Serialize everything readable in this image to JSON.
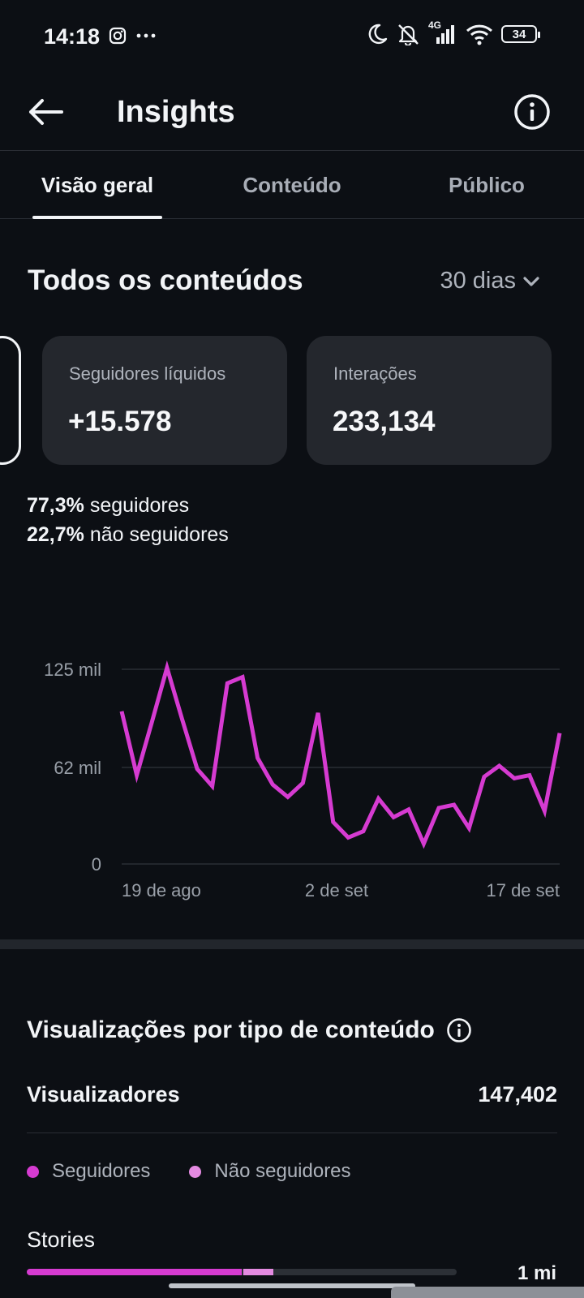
{
  "status_bar": {
    "time": "14:18",
    "network": "4G",
    "battery": "34",
    "icons": [
      "instagram-icon",
      "more-dots-icon",
      "moon-icon",
      "bell-off-icon",
      "signal-icon",
      "wifi-icon",
      "battery-icon"
    ]
  },
  "header": {
    "title": "Insights",
    "back_icon": "arrow-left-icon",
    "info_icon": "info-icon"
  },
  "tabs": [
    {
      "label": "Visão geral",
      "active": true
    },
    {
      "label": "Conteúdo",
      "active": false
    },
    {
      "label": "Público",
      "active": false
    }
  ],
  "overview": {
    "section_title": "Todos os conteúdos",
    "range": "30 dias",
    "cards": [
      {
        "label": "Seguidores líquidos",
        "value": "+15.578"
      },
      {
        "label": "Interações",
        "value": "233,134"
      }
    ],
    "split": [
      {
        "pct": "77,3%",
        "text": " seguidores"
      },
      {
        "pct": "22,7%",
        "text": " não seguidores"
      }
    ]
  },
  "chart_data": {
    "type": "line",
    "y_ticks": [
      "125 mil",
      "62 mil",
      "0"
    ],
    "y_tick_values": [
      125000,
      62000,
      0
    ],
    "ylim": [
      0,
      125000
    ],
    "x_labels": [
      "19 de ago",
      "2 de set",
      "17 de set"
    ],
    "grid": true,
    "color": "#d63bd1",
    "series": [
      {
        "values": [
          98000,
          57000,
          91000,
          126000,
          93000,
          61000,
          50000,
          116000,
          120000,
          68000,
          51000,
          43000,
          52000,
          97000,
          27000,
          17000,
          21000,
          42000,
          30000,
          35000,
          13000,
          36000,
          38000,
          23000,
          56000,
          63000,
          55000,
          57000,
          34000,
          84000
        ]
      }
    ]
  },
  "views_section": {
    "title": "Visualizações por tipo de conteúdo",
    "info_icon": "info-icon",
    "viewers_label": "Visualizadores",
    "viewers_value": "147,402",
    "legend": [
      {
        "label": "Seguidores",
        "color": "#d63bd1"
      },
      {
        "label": "Não seguidores",
        "color": "#e48ae1"
      }
    ],
    "stories": {
      "label": "Stories",
      "value": "1 mi",
      "followers_fraction": 0.5,
      "non_followers_fraction": 0.07
    }
  }
}
